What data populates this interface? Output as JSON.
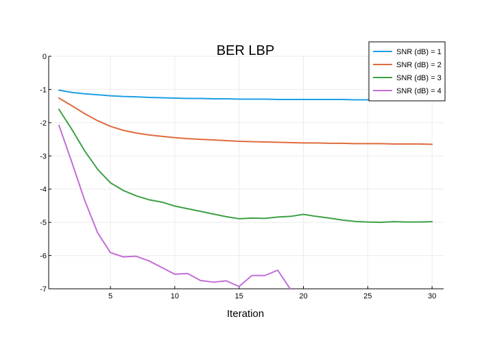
{
  "chart_data": {
    "type": "line",
    "title": "BER LBP",
    "xlabel": "Iteration",
    "ylabel": "",
    "xlim": [
      0.2,
      30.9
    ],
    "ylim": [
      -7,
      0
    ],
    "xticks": [
      5,
      10,
      15,
      20,
      25,
      30
    ],
    "yticks": [
      0,
      -1,
      -2,
      -3,
      -4,
      -5,
      -6,
      -7
    ],
    "grid": true,
    "legend_position": "top-right",
    "x": [
      1,
      2,
      3,
      4,
      5,
      6,
      7,
      8,
      9,
      10,
      11,
      12,
      13,
      14,
      15,
      16,
      17,
      18,
      19,
      20,
      21,
      22,
      23,
      24,
      25,
      26,
      27,
      28,
      29,
      30
    ],
    "series": [
      {
        "name": "SNR (dB) = 1",
        "color": "#1b9ee6",
        "values": [
          -1.02,
          -1.09,
          -1.13,
          -1.16,
          -1.19,
          -1.21,
          -1.22,
          -1.24,
          -1.25,
          -1.26,
          -1.27,
          -1.27,
          -1.28,
          -1.28,
          -1.29,
          -1.29,
          -1.29,
          -1.3,
          -1.3,
          -1.3,
          -1.3,
          -1.3,
          -1.3,
          -1.31,
          -1.31,
          -1.31,
          -1.31,
          -1.31,
          -1.31,
          -1.31
        ]
      },
      {
        "name": "SNR (dB) = 2",
        "color": "#de6b3b",
        "values": [
          -1.26,
          -1.49,
          -1.73,
          -1.94,
          -2.11,
          -2.23,
          -2.31,
          -2.37,
          -2.41,
          -2.45,
          -2.48,
          -2.5,
          -2.52,
          -2.54,
          -2.56,
          -2.57,
          -2.58,
          -2.59,
          -2.6,
          -2.61,
          -2.61,
          -2.62,
          -2.62,
          -2.63,
          -2.63,
          -2.63,
          -2.64,
          -2.64,
          -2.64,
          -2.65
        ]
      },
      {
        "name": "SNR (dB) = 3",
        "color": "#3ba044",
        "values": [
          -1.6,
          -2.2,
          -2.85,
          -3.4,
          -3.81,
          -4.04,
          -4.2,
          -4.32,
          -4.39,
          -4.51,
          -4.59,
          -4.67,
          -4.75,
          -4.83,
          -4.89,
          -4.87,
          -4.88,
          -4.84,
          -4.82,
          -4.76,
          -4.82,
          -4.87,
          -4.93,
          -4.97,
          -4.99,
          -5.0,
          -4.98,
          -4.99,
          -4.99,
          -4.98
        ]
      },
      {
        "name": "SNR (dB) = 4",
        "color": "#c16dd6",
        "values": [
          -2.08,
          -3.19,
          -4.34,
          -5.31,
          -5.91,
          -6.04,
          -6.02,
          -6.16,
          -6.36,
          -6.56,
          -6.54,
          -6.75,
          -6.8,
          -6.76,
          -6.93,
          -6.6,
          -6.6,
          -6.44,
          -7.02,
          null,
          null,
          null,
          null,
          null,
          null,
          null,
          null,
          null,
          null,
          null
        ]
      }
    ]
  }
}
